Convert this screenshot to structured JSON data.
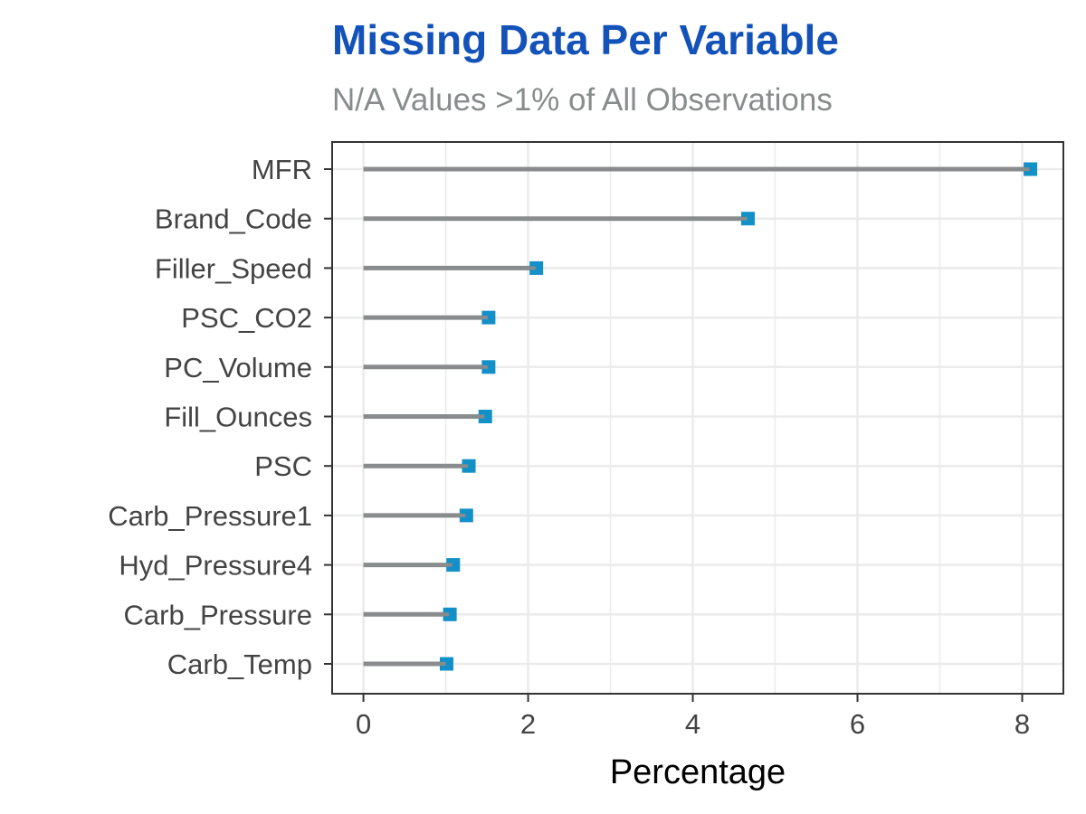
{
  "chart_data": {
    "type": "lollipop",
    "title": "Missing Data Per Variable",
    "subtitle": "N/A Values >1% of All Observations",
    "xlabel": "Percentage",
    "ylabel": "",
    "categories": [
      "MFR",
      "Brand_Code",
      "Filler_Speed",
      "PSC_CO2",
      "PC_Volume",
      "Fill_Ounces",
      "PSC",
      "Carb_Pressure1",
      "Hyd_Pressure4",
      "Carb_Pressure",
      "Carb_Temp"
    ],
    "values": [
      8.1,
      4.67,
      2.1,
      1.52,
      1.52,
      1.48,
      1.28,
      1.25,
      1.09,
      1.05,
      1.01
    ],
    "xlim": [
      -0.38,
      8.5
    ],
    "xticks": [
      0,
      2,
      4,
      6,
      8
    ],
    "grid": true,
    "legend": "none",
    "colors": {
      "title": "#1352B8",
      "subtitle": "#888C8C",
      "stem": "#888C8C",
      "point": "#1390C8",
      "grid": "#EBEBEB",
      "border": "#333333"
    }
  }
}
